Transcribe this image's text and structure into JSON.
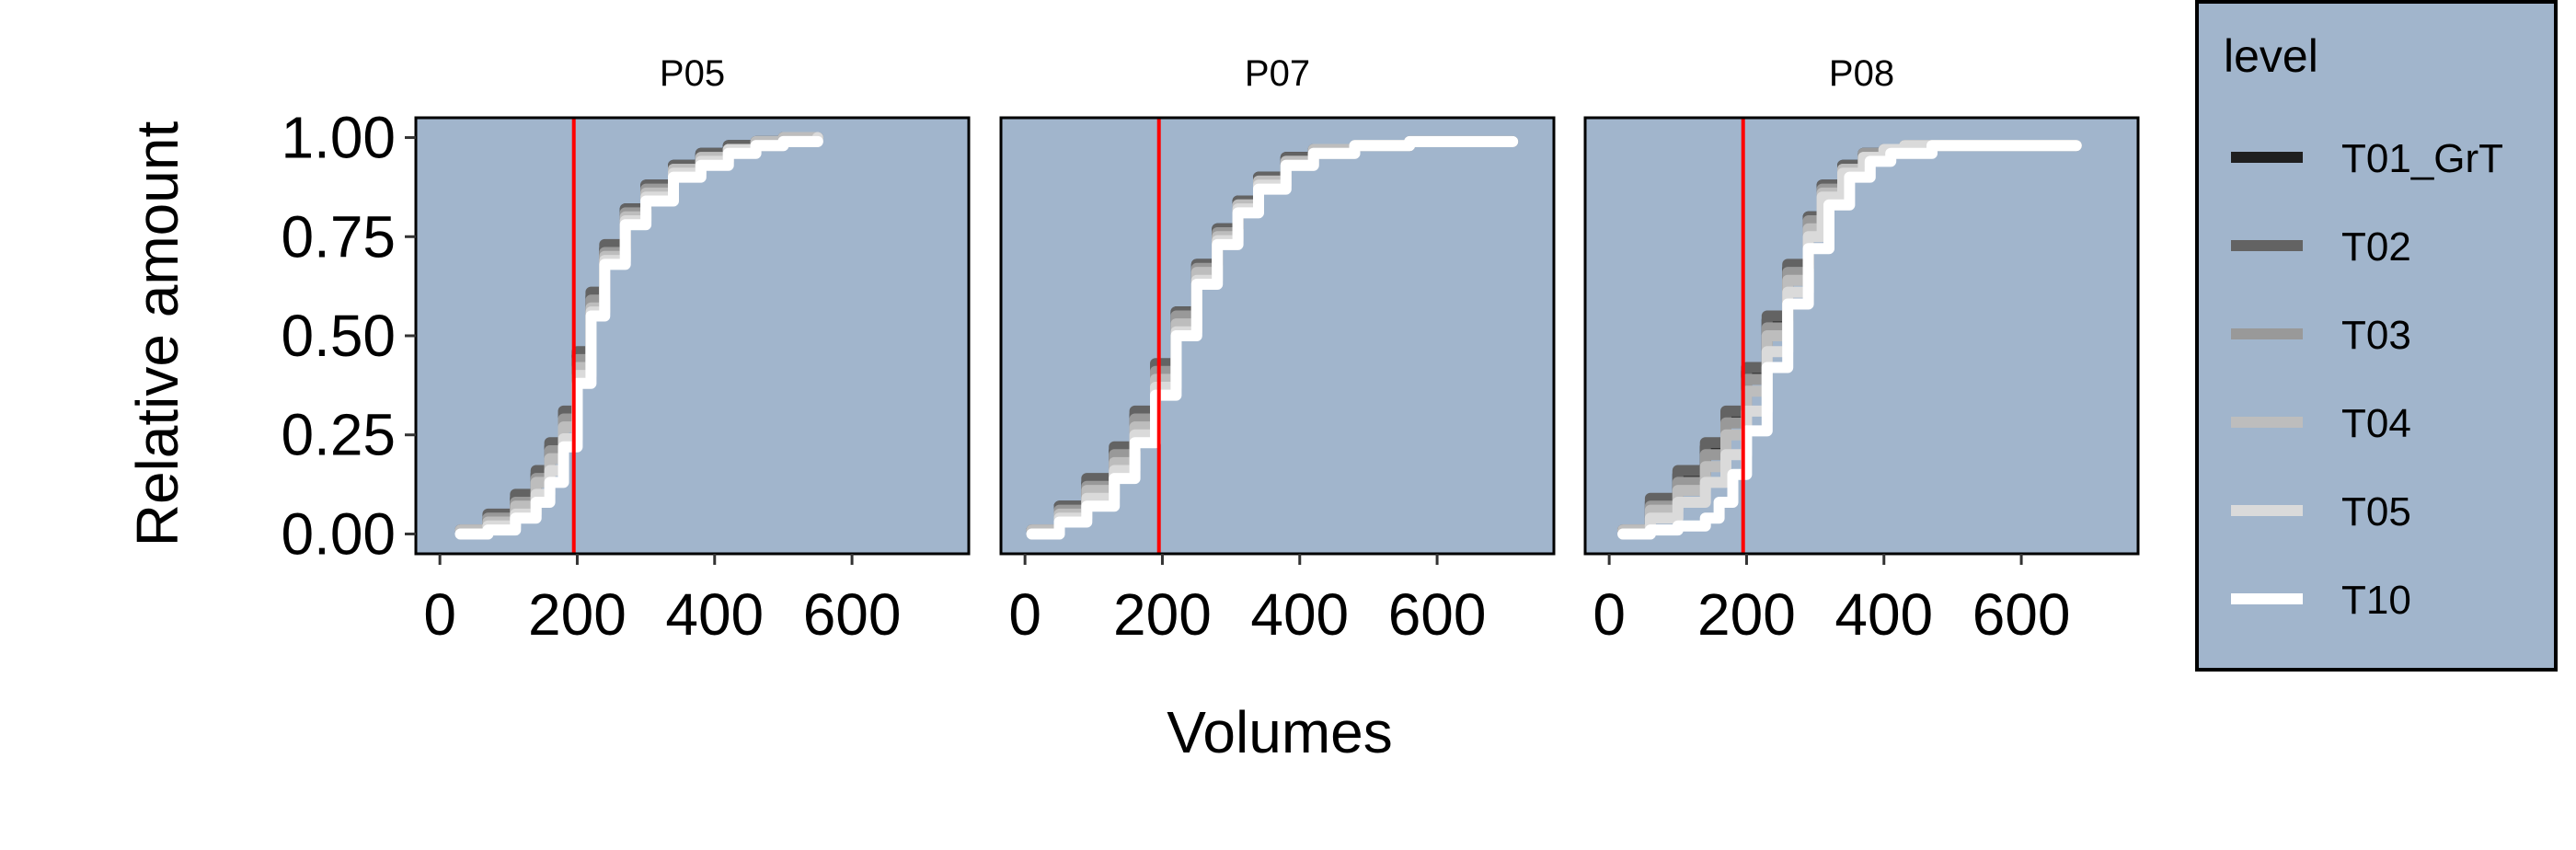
{
  "chart_data": {
    "type": "line",
    "xlabel": "Volumes",
    "ylabel": "Relative amount",
    "xlim": [
      -35,
      770
    ],
    "ylim": [
      -0.05,
      1.05
    ],
    "x_ticks": [
      0,
      200,
      400,
      600
    ],
    "y_ticks": [
      "0.00",
      "0.25",
      "0.50",
      "0.75",
      "1.00"
    ],
    "y_tick_values": [
      0,
      0.25,
      0.5,
      0.75,
      1.0
    ],
    "reference_line": {
      "x": 195,
      "color": "#ff0000"
    },
    "panel_background": "#a1b5cc",
    "legend": {
      "title": "level",
      "position": "right",
      "entries": [
        {
          "name": "T01_GrT",
          "color": "#1f1f1f"
        },
        {
          "name": "T02",
          "color": "#636363"
        },
        {
          "name": "T03",
          "color": "#999999"
        },
        {
          "name": "T04",
          "color": "#bdbdbd"
        },
        {
          "name": "T05",
          "color": "#dadada"
        },
        {
          "name": "T10",
          "color": "#ffffff"
        }
      ]
    },
    "panels": [
      {
        "title": "P05",
        "series": [
          {
            "name": "T01_GrT",
            "x": [
              30,
              70,
              110,
              140,
              160,
              180,
              200,
              220,
              240,
              270,
              300,
              340,
              380,
              420,
              460,
              500,
              550
            ],
            "y": [
              0.01,
              0.04,
              0.09,
              0.15,
              0.22,
              0.3,
              0.45,
              0.6,
              0.72,
              0.82,
              0.88,
              0.93,
              0.96,
              0.98,
              0.99,
              1.0,
              1.0
            ]
          },
          {
            "name": "T02",
            "x": [
              30,
              70,
              110,
              140,
              160,
              180,
              200,
              220,
              240,
              270,
              300,
              340,
              380,
              420,
              460,
              500,
              550
            ],
            "y": [
              0.01,
              0.05,
              0.1,
              0.16,
              0.23,
              0.31,
              0.46,
              0.61,
              0.73,
              0.82,
              0.88,
              0.93,
              0.96,
              0.98,
              0.99,
              1.0,
              1.0
            ]
          },
          {
            "name": "T03",
            "x": [
              30,
              70,
              110,
              140,
              160,
              180,
              200,
              220,
              240,
              270,
              300,
              340,
              380,
              420,
              460,
              500,
              550
            ],
            "y": [
              0.01,
              0.04,
              0.08,
              0.14,
              0.21,
              0.29,
              0.44,
              0.59,
              0.71,
              0.81,
              0.87,
              0.92,
              0.95,
              0.97,
              0.99,
              1.0,
              1.0
            ]
          },
          {
            "name": "T04",
            "x": [
              30,
              70,
              110,
              140,
              160,
              180,
              200,
              220,
              240,
              270,
              300,
              340,
              380,
              420,
              460,
              500,
              550
            ],
            "y": [
              0.01,
              0.03,
              0.07,
              0.13,
              0.19,
              0.27,
              0.42,
              0.57,
              0.7,
              0.8,
              0.86,
              0.92,
              0.95,
              0.97,
              0.99,
              1.0,
              1.0
            ]
          },
          {
            "name": "T05",
            "x": [
              30,
              70,
              110,
              140,
              160,
              180,
              200,
              220,
              240,
              270,
              300,
              340,
              380,
              420,
              460,
              500,
              550
            ],
            "y": [
              0.0,
              0.02,
              0.05,
              0.1,
              0.16,
              0.24,
              0.4,
              0.56,
              0.69,
              0.79,
              0.85,
              0.91,
              0.94,
              0.97,
              0.98,
              0.99,
              1.0
            ]
          },
          {
            "name": "T10",
            "x": [
              30,
              70,
              110,
              140,
              160,
              180,
              200,
              220,
              240,
              270,
              300,
              340,
              380,
              420,
              460,
              500,
              550
            ],
            "y": [
              0.0,
              0.01,
              0.04,
              0.08,
              0.13,
              0.22,
              0.38,
              0.55,
              0.68,
              0.78,
              0.84,
              0.9,
              0.93,
              0.96,
              0.98,
              0.99,
              0.99
            ]
          }
        ]
      },
      {
        "title": "P07",
        "series": [
          {
            "name": "T01_GrT",
            "x": [
              10,
              50,
              90,
              130,
              160,
              190,
              220,
              250,
              280,
              310,
              340,
              380,
              420,
              480,
              560,
              640,
              710
            ],
            "y": [
              0.01,
              0.07,
              0.13,
              0.21,
              0.3,
              0.42,
              0.56,
              0.68,
              0.77,
              0.84,
              0.9,
              0.95,
              0.97,
              0.98,
              0.99,
              0.99,
              0.99
            ]
          },
          {
            "name": "T02",
            "x": [
              10,
              50,
              90,
              130,
              160,
              190,
              220,
              250,
              280,
              310,
              340,
              380,
              420,
              480,
              560,
              640,
              710
            ],
            "y": [
              0.01,
              0.07,
              0.14,
              0.22,
              0.31,
              0.43,
              0.56,
              0.68,
              0.77,
              0.84,
              0.9,
              0.95,
              0.97,
              0.98,
              0.99,
              0.99,
              0.99
            ]
          },
          {
            "name": "T03",
            "x": [
              10,
              50,
              90,
              130,
              160,
              190,
              220,
              250,
              280,
              310,
              340,
              380,
              420,
              480,
              560,
              640,
              710
            ],
            "y": [
              0.01,
              0.06,
              0.12,
              0.2,
              0.29,
              0.41,
              0.55,
              0.67,
              0.76,
              0.83,
              0.89,
              0.94,
              0.97,
              0.98,
              0.99,
              0.99,
              0.99
            ]
          },
          {
            "name": "T04",
            "x": [
              10,
              50,
              90,
              130,
              160,
              190,
              220,
              250,
              280,
              310,
              340,
              380,
              420,
              480,
              560,
              640,
              710
            ],
            "y": [
              0.01,
              0.05,
              0.11,
              0.18,
              0.27,
              0.39,
              0.53,
              0.66,
              0.75,
              0.83,
              0.89,
              0.94,
              0.97,
              0.98,
              0.99,
              0.99,
              0.99
            ]
          },
          {
            "name": "T05",
            "x": [
              10,
              50,
              90,
              130,
              160,
              190,
              220,
              250,
              280,
              310,
              340,
              380,
              420,
              480,
              560,
              640,
              710
            ],
            "y": [
              0.0,
              0.04,
              0.09,
              0.16,
              0.25,
              0.37,
              0.51,
              0.64,
              0.74,
              0.82,
              0.88,
              0.93,
              0.96,
              0.98,
              0.99,
              0.99,
              0.99
            ]
          },
          {
            "name": "T10",
            "x": [
              10,
              50,
              90,
              130,
              160,
              190,
              220,
              250,
              280,
              310,
              340,
              380,
              420,
              480,
              560,
              640,
              710
            ],
            "y": [
              0.0,
              0.03,
              0.07,
              0.14,
              0.23,
              0.35,
              0.5,
              0.63,
              0.73,
              0.81,
              0.87,
              0.93,
              0.96,
              0.98,
              0.99,
              0.99,
              0.99
            ]
          }
        ]
      },
      {
        "title": "P08",
        "series": [
          {
            "name": "T01_GrT",
            "x": [
              20,
              60,
              100,
              140,
              170,
              200,
              230,
              260,
              290,
              310,
              340,
              370,
              400,
              430,
              470,
              560,
              680
            ],
            "y": [
              0.01,
              0.08,
              0.15,
              0.22,
              0.3,
              0.41,
              0.54,
              0.67,
              0.8,
              0.88,
              0.93,
              0.96,
              0.97,
              0.98,
              0.98,
              0.98,
              0.98
            ]
          },
          {
            "name": "T02",
            "x": [
              20,
              60,
              100,
              140,
              170,
              200,
              230,
              260,
              290,
              310,
              340,
              370,
              400,
              430,
              470,
              560,
              680
            ],
            "y": [
              0.01,
              0.09,
              0.16,
              0.23,
              0.31,
              0.42,
              0.55,
              0.68,
              0.8,
              0.88,
              0.93,
              0.96,
              0.97,
              0.98,
              0.98,
              0.98,
              0.98
            ]
          },
          {
            "name": "T03",
            "x": [
              20,
              60,
              100,
              140,
              170,
              200,
              230,
              260,
              290,
              310,
              340,
              370,
              400,
              430,
              470,
              560,
              680
            ],
            "y": [
              0.01,
              0.07,
              0.13,
              0.2,
              0.28,
              0.39,
              0.52,
              0.66,
              0.79,
              0.87,
              0.92,
              0.96,
              0.97,
              0.98,
              0.98,
              0.98,
              0.98
            ]
          },
          {
            "name": "T04",
            "x": [
              20,
              60,
              100,
              140,
              170,
              200,
              230,
              260,
              290,
              310,
              340,
              370,
              400,
              430,
              470,
              560,
              680
            ],
            "y": [
              0.01,
              0.06,
              0.11,
              0.17,
              0.25,
              0.36,
              0.5,
              0.64,
              0.77,
              0.86,
              0.92,
              0.95,
              0.97,
              0.98,
              0.98,
              0.98,
              0.98
            ]
          },
          {
            "name": "T05",
            "x": [
              20,
              60,
              100,
              140,
              170,
              200,
              230,
              260,
              290,
              310,
              340,
              370,
              400,
              430,
              470,
              560,
              680
            ],
            "y": [
              0.0,
              0.04,
              0.08,
              0.13,
              0.2,
              0.31,
              0.46,
              0.61,
              0.75,
              0.85,
              0.91,
              0.95,
              0.97,
              0.98,
              0.98,
              0.98,
              0.98
            ]
          },
          {
            "name": "T10",
            "x": [
              20,
              60,
              100,
              140,
              160,
              180,
              200,
              230,
              260,
              290,
              320,
              350,
              380,
              410,
              470,
              560,
              680
            ],
            "y": [
              0.0,
              0.01,
              0.02,
              0.04,
              0.08,
              0.15,
              0.26,
              0.42,
              0.58,
              0.72,
              0.83,
              0.9,
              0.94,
              0.96,
              0.98,
              0.98,
              0.98
            ]
          }
        ]
      }
    ]
  }
}
